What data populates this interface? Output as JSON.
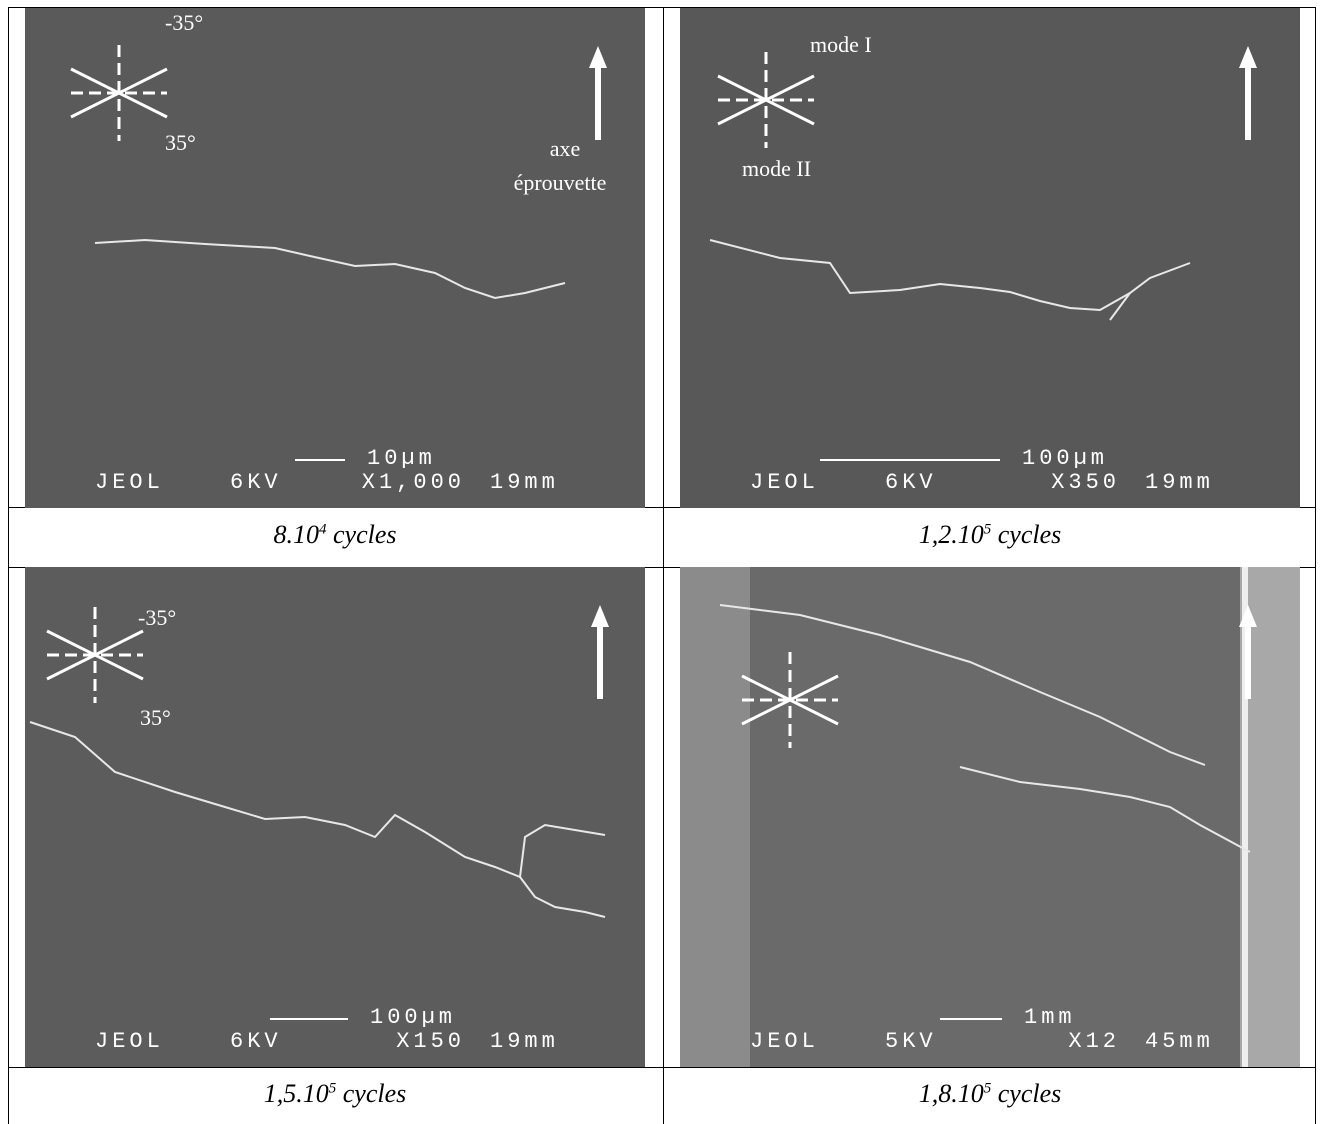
{
  "panels": [
    {
      "sem": {
        "label": "JEOL",
        "kv": "6KV",
        "mag": "X1,000",
        "wd": "19mm",
        "scale": "10µm"
      },
      "annotations": [
        "-35°",
        "35°",
        "axe",
        "éprouvette"
      ],
      "caption": {
        "number": "8.10",
        "exponent": "4",
        "unit": "cycles"
      }
    },
    {
      "sem": {
        "label": "JEOL",
        "kv": "6KV",
        "mag": "X350",
        "wd": "19mm",
        "scale": "100µm"
      },
      "annotations": [
        "mode I",
        "mode II"
      ],
      "caption": {
        "number": "1,2.10",
        "exponent": "5",
        "unit": "cycles"
      }
    },
    {
      "sem": {
        "label": "JEOL",
        "kv": "6KV",
        "mag": "X150",
        "wd": "19mm",
        "scale": "100µm"
      },
      "annotations": [
        "-35°",
        "35°"
      ],
      "caption": {
        "number": "1,5.10",
        "exponent": "5",
        "unit": "cycles"
      }
    },
    {
      "sem": {
        "label": "JEOL",
        "kv": "5KV",
        "mag": "X12",
        "wd": "45mm",
        "scale": "1mm"
      },
      "annotations": [],
      "caption": {
        "number": "1,8.10",
        "exponent": "5",
        "unit": "cycles"
      }
    }
  ]
}
